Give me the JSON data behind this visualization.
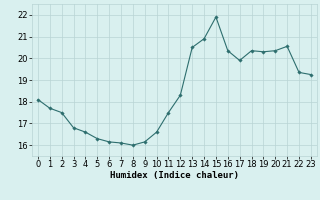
{
  "x": [
    0,
    1,
    2,
    3,
    4,
    5,
    6,
    7,
    8,
    9,
    10,
    11,
    12,
    13,
    14,
    15,
    16,
    17,
    18,
    19,
    20,
    21,
    22,
    23
  ],
  "y": [
    18.1,
    17.7,
    17.5,
    16.8,
    16.6,
    16.3,
    16.15,
    16.1,
    16.0,
    16.15,
    16.6,
    17.5,
    18.3,
    20.5,
    20.9,
    21.9,
    20.35,
    19.9,
    20.35,
    20.3,
    20.35,
    20.55,
    19.35,
    19.25
  ],
  "line_color": "#2d6e6e",
  "marker": "D",
  "marker_size": 1.8,
  "bg_color": "#d9f0ef",
  "grid_color": "#b8d4d4",
  "xlabel": "Humidex (Indice chaleur)",
  "xlim": [
    -0.5,
    23.5
  ],
  "ylim": [
    15.5,
    22.5
  ],
  "yticks": [
    16,
    17,
    18,
    19,
    20,
    21,
    22
  ],
  "xticks": [
    0,
    1,
    2,
    3,
    4,
    5,
    6,
    7,
    8,
    9,
    10,
    11,
    12,
    13,
    14,
    15,
    16,
    17,
    18,
    19,
    20,
    21,
    22,
    23
  ],
  "xlabel_fontsize": 6.5,
  "tick_fontsize": 6.0,
  "line_width": 0.8
}
